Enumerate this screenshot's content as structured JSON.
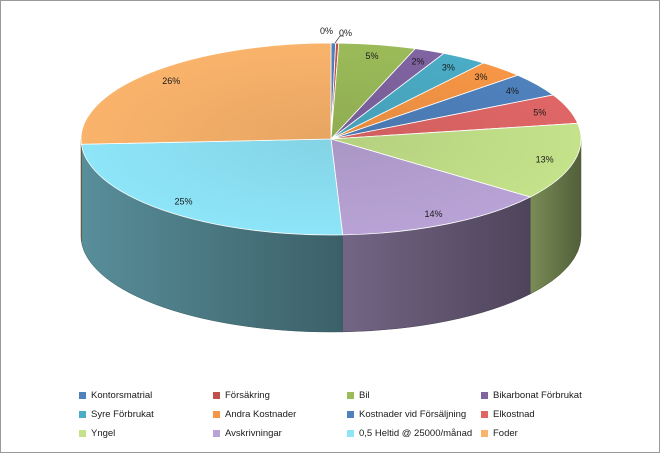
{
  "chart_data": {
    "type": "pie",
    "style": "3d",
    "start_at": "top",
    "direction": "clockwise",
    "legend_position": "bottom",
    "slices": [
      {
        "name": "Kontorsmatrial",
        "value": 0.3,
        "label": "0%",
        "color": "#4f81bd"
      },
      {
        "name": "Försäkring",
        "value": 0.2,
        "label": "0%",
        "color": "#c0504d"
      },
      {
        "name": "Bil",
        "value": 5,
        "label": "5%",
        "color": "#9bbb59"
      },
      {
        "name": "Bikarbonat Förbrukat",
        "value": 2,
        "label": "2%",
        "color": "#8064a2"
      },
      {
        "name": "Syre Förbrukat",
        "value": 3,
        "label": "3%",
        "color": "#4bacc6"
      },
      {
        "name": "Andra Kostnader",
        "value": 3,
        "label": "3%",
        "color": "#f79646"
      },
      {
        "name": "Kostnader vid Försäljning",
        "value": 4,
        "label": "4%",
        "color": "#4f81bd"
      },
      {
        "name": "Elkostnad",
        "value": 5,
        "label": "5%",
        "color": "#e06666"
      },
      {
        "name": "Yngel",
        "value": 13,
        "label": "13%",
        "color": "#c4e28a"
      },
      {
        "name": "Avskrivningar",
        "value": 14,
        "label": "14%",
        "color": "#b9a3d6"
      },
      {
        "name": "0,5 Heltid @ 25000/månad",
        "value": 25,
        "label": "25%",
        "color": "#8ee5f8"
      },
      {
        "name": "Foder",
        "value": 26,
        "label": "26%",
        "color": "#fab36b"
      }
    ]
  }
}
